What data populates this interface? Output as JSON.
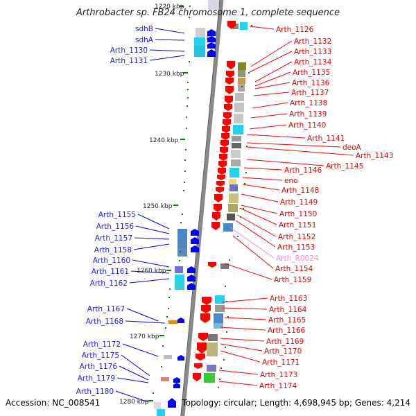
{
  "title": "Arthrobacter sp. FB24 chromosome 1, complete sequence",
  "footer": {
    "accession": "Accession: NC_008541",
    "topology": "Topology: circular; Length: 4,698,945 bp; Genes: 4,214"
  },
  "ruler": {
    "start_kbp": 1220,
    "ticks": [
      "1220 kbp",
      "1230 kbp",
      "1240 kbp",
      "1250 kbp",
      "1260 kbp",
      "1270 kbp",
      "1280 kbp"
    ]
  },
  "colors": {
    "left_label": "#1a1aff",
    "right_label": "#e60000",
    "rna_label": "#ff88cc",
    "minus_strand_arrow": "#0000ff",
    "plus_strand_arrow": "#ff0000",
    "backbone": "#888888",
    "tick": "#008000"
  },
  "genes_left": [
    "sdhB",
    "sdhA",
    "Arth_1130",
    "Arth_1131",
    "Arth_1155",
    "Arth_1156",
    "Arth_1157",
    "Arth_1158",
    "Arth_1160",
    "Arth_1161",
    "Arth_1162",
    "Arth_1167",
    "Arth_1168",
    "Arth_1172",
    "Arth_1175",
    "Arth_1176",
    "Arth_1179",
    "Arth_1180"
  ],
  "genes_right": [
    "Arth_1126",
    "Arth_1132",
    "Arth_1133",
    "Arth_1134",
    "Arth_1135",
    "Arth_1136",
    "Arth_1137",
    "Arth_1138",
    "Arth_1139",
    "Arth_1140",
    "Arth_1141",
    "deoA",
    "Arth_1143",
    "Arth_1145",
    "Arth_1146",
    "eno",
    "Arth_1148",
    "Arth_1149",
    "Arth_1150",
    "Arth_1151",
    "Arth_1152",
    "Arth_1153",
    "Arth_R0024",
    "Arth_1154",
    "Arth_1159",
    "Arth_1163",
    "Arth_1164",
    "Arth_1165",
    "Arth_1166",
    "Arth_1169",
    "Arth_1170",
    "Arth_1171",
    "Arth_1173",
    "Arth_1174"
  ],
  "rna_genes": [
    "Arth_R0024"
  ]
}
